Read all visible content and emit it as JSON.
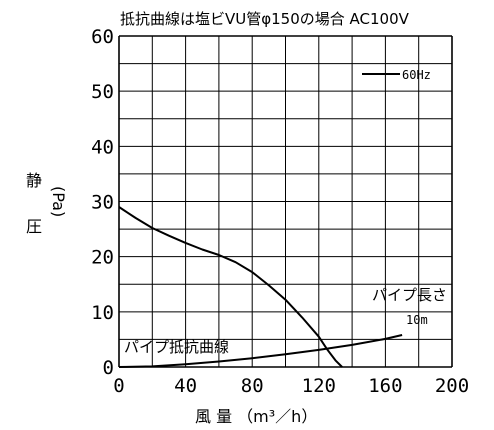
{
  "chart_data": {
    "type": "line",
    "title": "抵抗曲線は塩ビVU管φ150の場合 AC100V",
    "xlabel": "風 量 （m³／h）",
    "ylabel_main": "静",
    "ylabel_sub1": "圧",
    "ylabel_sub2": "(Pa)",
    "xlim": [
      0,
      200
    ],
    "ylim": [
      0,
      60
    ],
    "x_ticks": [
      "0",
      "40",
      "80",
      "120",
      "160",
      "200"
    ],
    "y_ticks": [
      "0",
      "10",
      "20",
      "30",
      "40",
      "50",
      "60"
    ],
    "grid": true,
    "legend": {
      "position": "top-right",
      "label": "60Hz"
    },
    "series": [
      {
        "name": "60Hz",
        "x": [
          0,
          10,
          20,
          30,
          40,
          50,
          60,
          70,
          80,
          90,
          100,
          110,
          120,
          125,
          130,
          134
        ],
        "y": [
          29,
          27,
          25.2,
          23.8,
          22.5,
          21.3,
          20.3,
          19,
          17.2,
          14.8,
          12.2,
          9,
          5.5,
          3.2,
          1.2,
          0
        ]
      },
      {
        "name": "パイプ抵抗曲線",
        "x": [
          0,
          20,
          40,
          60,
          80,
          100,
          120,
          140,
          160,
          170
        ],
        "y": [
          0,
          0.1,
          0.5,
          1.0,
          1.6,
          2.3,
          3.1,
          4.0,
          5.1,
          5.8
        ]
      }
    ],
    "annotations": {
      "pipe_length_label": "パイプ長さ",
      "pipe_length_value": "10m",
      "pipe_curve_label": "パイプ抵抗曲線"
    }
  }
}
